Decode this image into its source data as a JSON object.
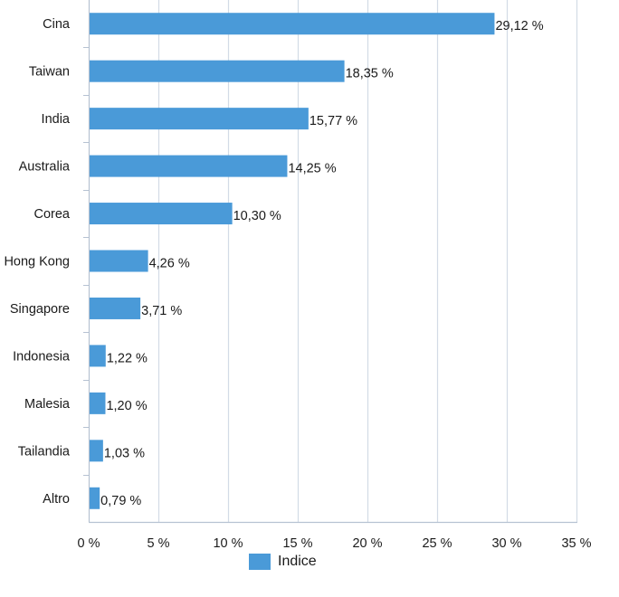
{
  "chart_data": {
    "type": "bar",
    "orientation": "horizontal",
    "categories": [
      "Cina",
      "Taiwan",
      "India",
      "Australia",
      "Corea",
      "Hong Kong",
      "Singapore",
      "Indonesia",
      "Malesia",
      "Tailandia",
      "Altro"
    ],
    "series": [
      {
        "name": "Indice",
        "values": [
          29.12,
          18.35,
          15.77,
          14.25,
          10.3,
          4.26,
          3.71,
          1.22,
          1.2,
          1.03,
          0.79
        ],
        "value_labels": [
          "29,12 %",
          "18,35 %",
          "15,77 %",
          "14,25 %",
          "10,30 %",
          "4,26 %",
          "3,71 %",
          "1,22 %",
          "1,20 %",
          "1,03 %",
          "0,79 %"
        ]
      }
    ],
    "xlim": [
      0,
      35
    ],
    "x_ticks": [
      0,
      5,
      10,
      15,
      20,
      25,
      30,
      35
    ],
    "x_tick_labels": [
      "0 %",
      "5 %",
      "10 %",
      "15 %",
      "20 %",
      "25 %",
      "30 %",
      "35 %"
    ],
    "grid": "vertical",
    "legend_position": "bottom-center",
    "colors": {
      "bar": "#4a9ad8",
      "grid": "#d3dbe6",
      "axis": "#b6c2d2",
      "text": "#1a1a1a"
    }
  }
}
